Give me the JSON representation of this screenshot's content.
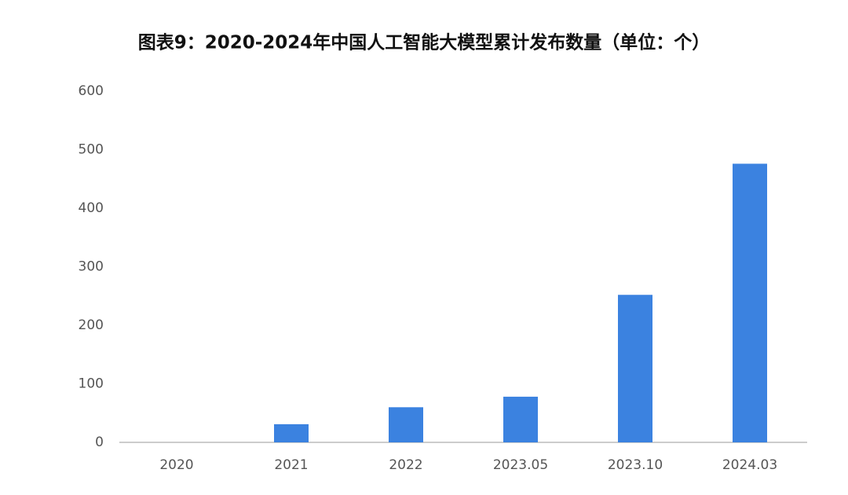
{
  "chart_data": {
    "type": "bar",
    "title": "图表9：2020-2024年中国人工智能大模型累计发布数量（单位：个）",
    "categories": [
      "2020",
      "2021",
      "2022",
      "2023.05",
      "2023.10",
      "2024.03"
    ],
    "values": [
      0,
      31,
      60,
      78,
      252,
      476
    ],
    "color": "#3b82e0",
    "ylim": [
      0,
      600
    ],
    "yticks": [
      0,
      100,
      200,
      300,
      400,
      500,
      600
    ],
    "grid": false
  }
}
